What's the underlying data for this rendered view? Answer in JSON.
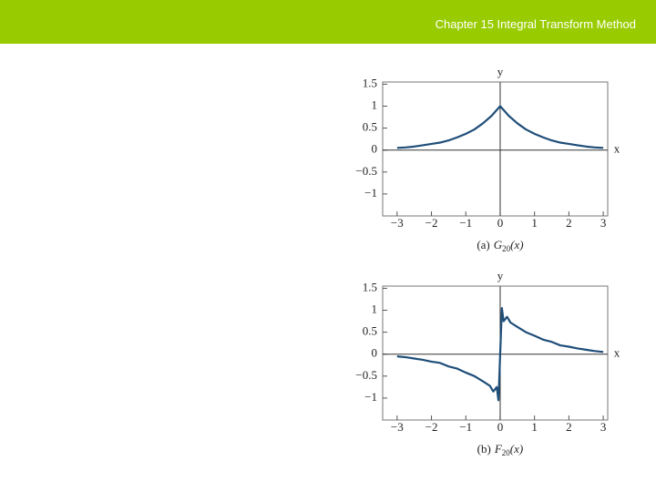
{
  "header": {
    "title": "Chapter 15  Integral Transform Method"
  },
  "chart_data": [
    {
      "type": "line",
      "caption_label": "(a)",
      "caption_symbol": "G",
      "caption_subscript": "20",
      "caption_arg": "(x)",
      "x_label": "x",
      "y_label": "y",
      "x": [
        -3,
        -2.75,
        -2.5,
        -2.25,
        -2,
        -1.75,
        -1.5,
        -1.25,
        -1,
        -0.75,
        -0.5,
        -0.25,
        0,
        0.25,
        0.5,
        0.75,
        1,
        1.25,
        1.5,
        1.75,
        2,
        2.25,
        2.5,
        2.75,
        3
      ],
      "series": [
        {
          "color": "#1f4e79",
          "values": [
            0.05,
            0.06,
            0.08,
            0.11,
            0.14,
            0.17,
            0.22,
            0.29,
            0.37,
            0.47,
            0.61,
            0.78,
            1.0,
            0.78,
            0.61,
            0.47,
            0.37,
            0.29,
            0.22,
            0.17,
            0.14,
            0.11,
            0.08,
            0.06,
            0.05
          ]
        }
      ],
      "xlim": [
        -3.42,
        3.13
      ],
      "ylim": [
        -1.5,
        1.55
      ],
      "xticks": [
        {
          "value": -3,
          "label": "−3"
        },
        {
          "value": -2,
          "label": "−2"
        },
        {
          "value": -1,
          "label": "−1"
        },
        0,
        1,
        2,
        3
      ],
      "yticks": [
        1.5,
        1,
        0.5,
        0,
        {
          "value": -0.5,
          "label": "−0.5"
        },
        {
          "value": -1,
          "label": "−1"
        }
      ]
    },
    {
      "type": "line",
      "caption_label": "(b)",
      "caption_symbol": "F",
      "caption_subscript": "20",
      "caption_arg": "(x)",
      "x_label": "x",
      "y_label": "y",
      "x": [
        -3,
        -2.75,
        -2.5,
        -2.25,
        -2,
        -1.75,
        -1.5,
        -1.25,
        -1,
        -0.75,
        -0.5,
        -0.3,
        -0.2,
        -0.1,
        -0.05,
        0,
        0.05,
        0.1,
        0.2,
        0.3,
        0.5,
        0.75,
        1,
        1.25,
        1.5,
        1.75,
        2,
        2.25,
        2.5,
        2.75,
        3
      ],
      "series": [
        {
          "color": "#1f4e79",
          "values": [
            -0.05,
            -0.07,
            -0.1,
            -0.13,
            -0.17,
            -0.2,
            -0.28,
            -0.33,
            -0.42,
            -0.5,
            -0.62,
            -0.72,
            -0.85,
            -0.75,
            -1.05,
            0,
            1.05,
            0.75,
            0.85,
            0.72,
            0.62,
            0.5,
            0.42,
            0.33,
            0.28,
            0.2,
            0.17,
            0.13,
            0.1,
            0.07,
            0.05
          ]
        }
      ],
      "xlim": [
        -3.42,
        3.13
      ],
      "ylim": [
        -1.5,
        1.55
      ],
      "xticks": [
        {
          "value": -3,
          "label": "−3"
        },
        {
          "value": -2,
          "label": "−2"
        },
        {
          "value": -1,
          "label": "−1"
        },
        0,
        1,
        2,
        3
      ],
      "yticks": [
        1.5,
        1,
        0.5,
        0,
        {
          "value": -0.5,
          "label": "−0.5"
        },
        {
          "value": -1,
          "label": "−1"
        }
      ]
    }
  ]
}
